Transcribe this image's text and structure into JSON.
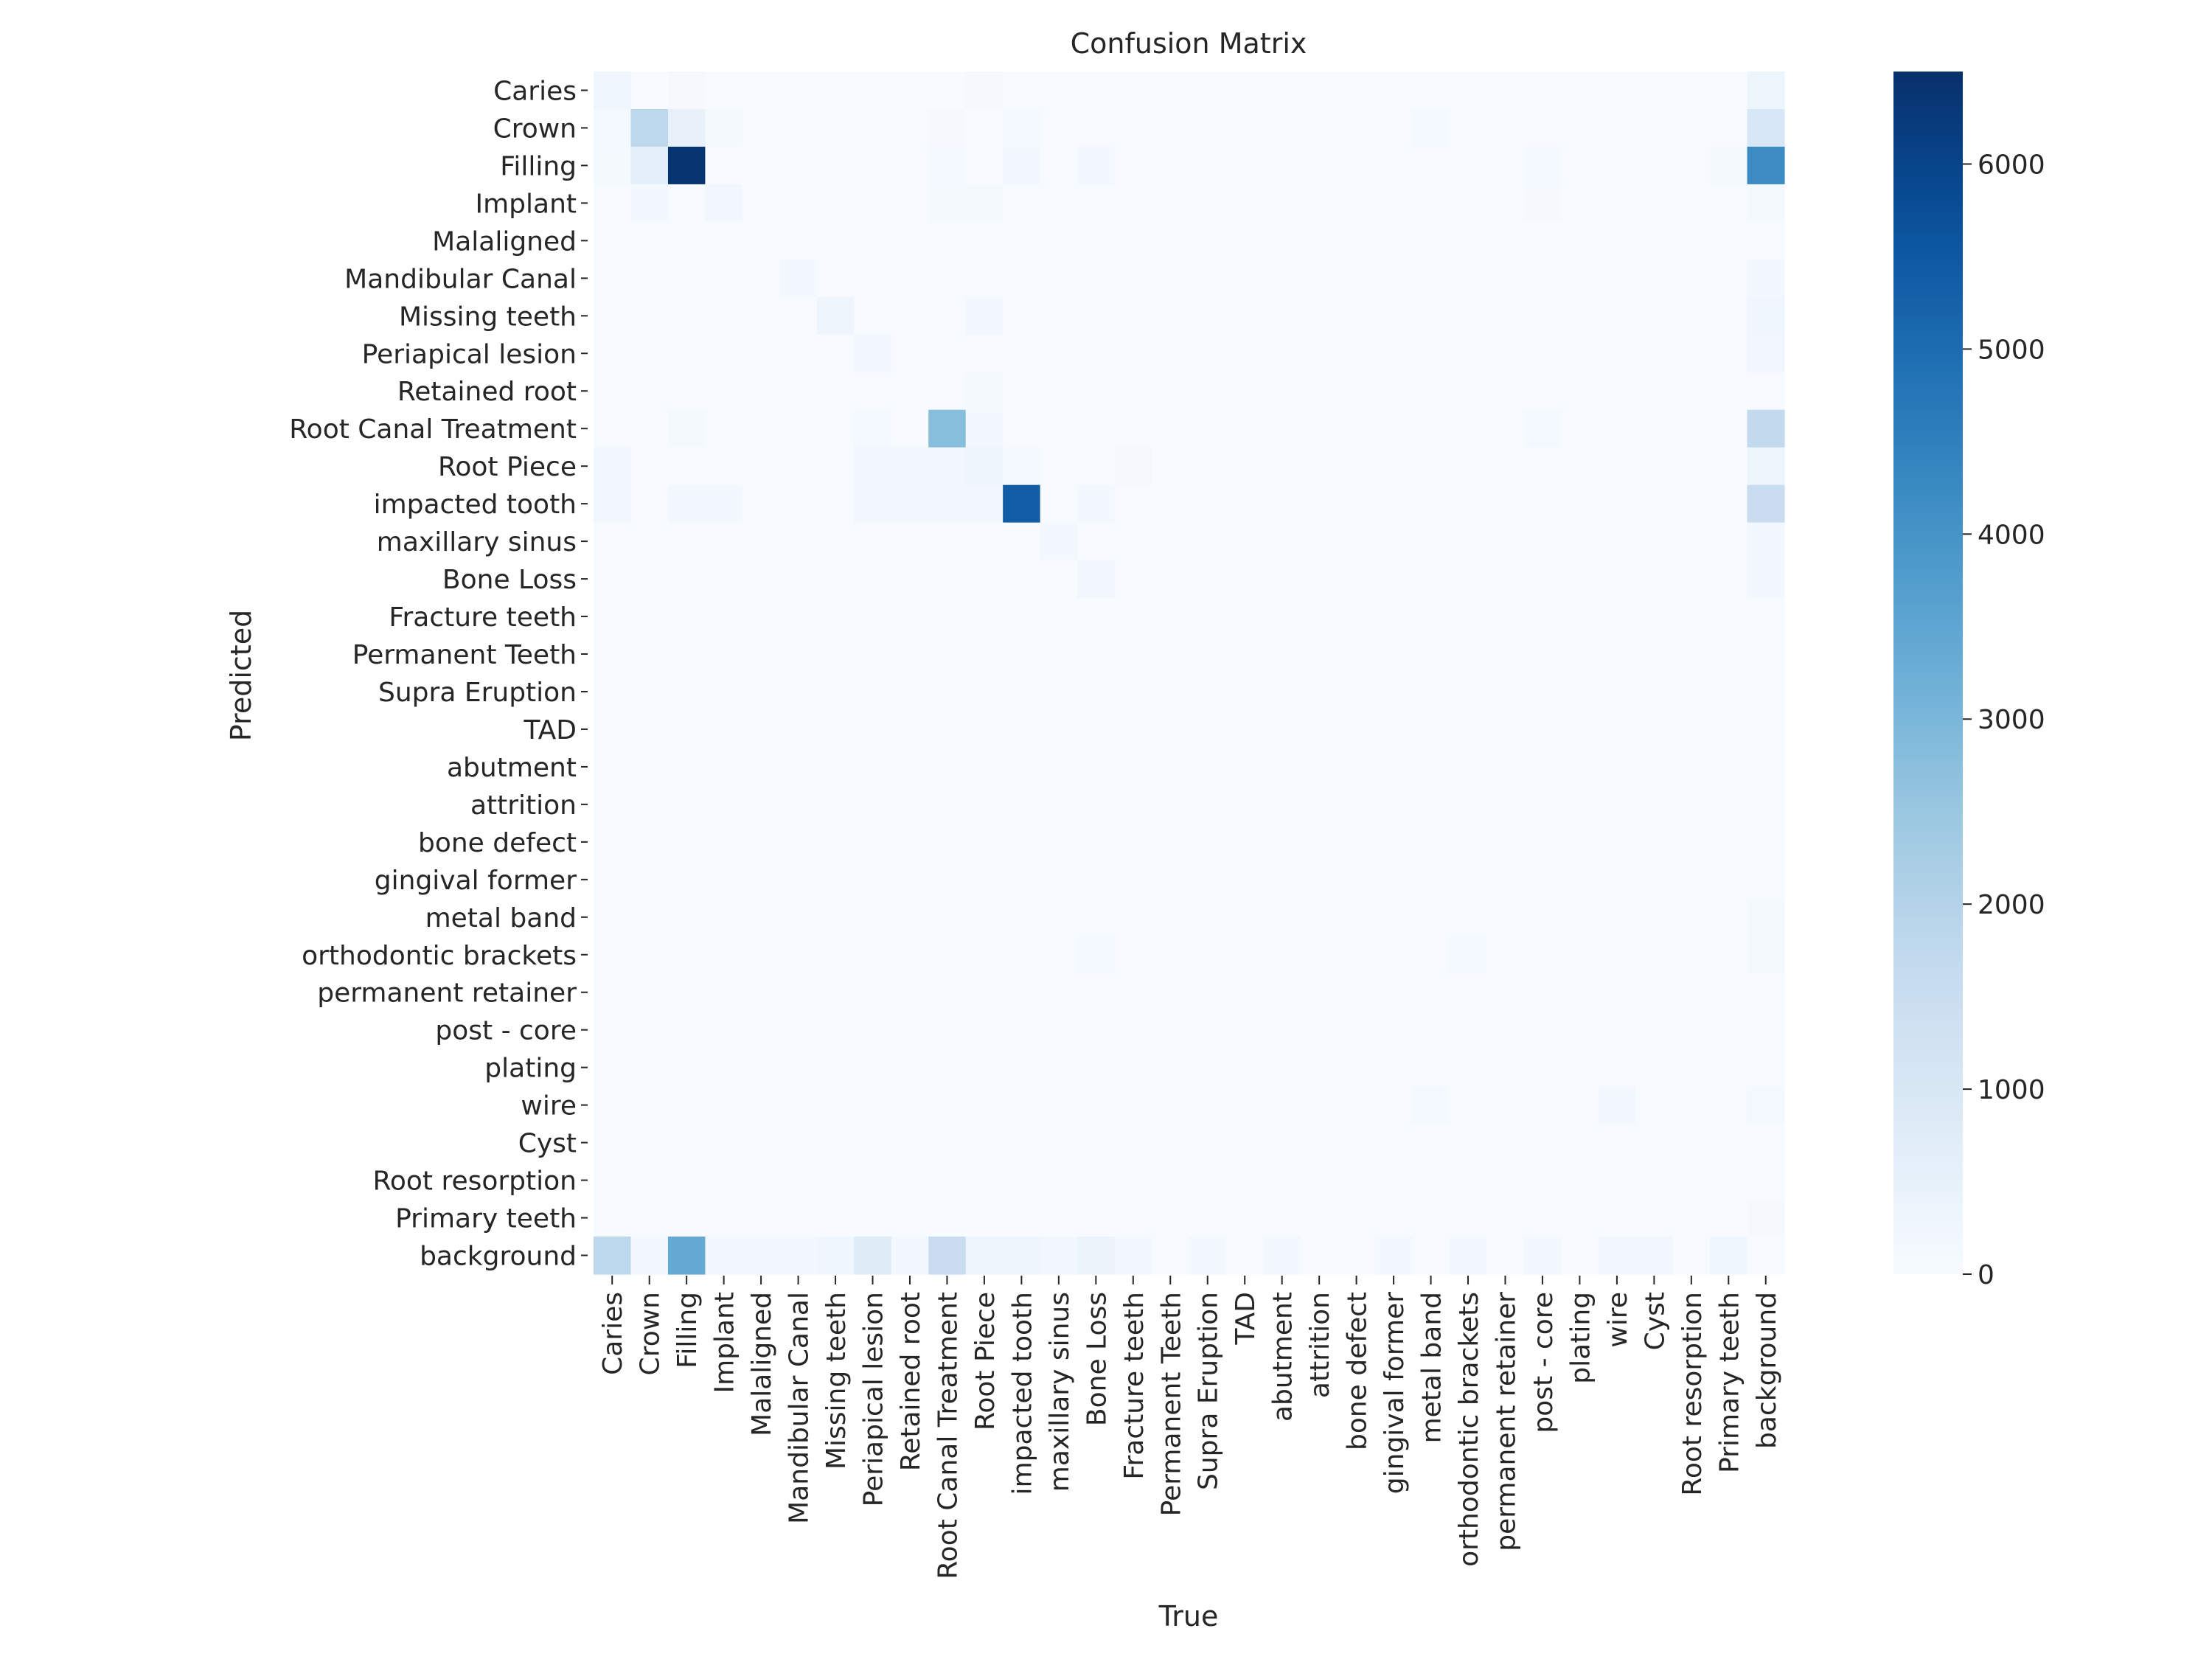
{
  "chart_data": {
    "type": "heatmap",
    "title": "Confusion Matrix",
    "xlabel": "True",
    "ylabel": "Predicted",
    "x_categories": [
      "Caries",
      "Crown",
      "Filling",
      "Implant",
      "Malaligned",
      "Mandibular Canal",
      "Missing teeth",
      "Periapical lesion",
      "Retained root",
      "Root Canal Treatment",
      "Root Piece",
      "impacted tooth",
      "maxillary sinus",
      "Bone Loss",
      "Fracture teeth",
      "Permanent Teeth",
      "Supra Eruption",
      "TAD",
      "abutment",
      "attrition",
      "bone defect",
      "gingival former",
      "metal band",
      "orthodontic brackets",
      "permanent retainer",
      "post - core",
      "plating",
      "wire",
      "Cyst",
      "Root resorption",
      "Primary teeth",
      "background"
    ],
    "y_categories": [
      "Caries",
      "Crown",
      "Filling",
      "Implant",
      "Malaligned",
      "Mandibular Canal",
      "Missing teeth",
      "Periapical lesion",
      "Retained root",
      "Root Canal Treatment",
      "Root Piece",
      "impacted tooth",
      "maxillary sinus",
      "Bone Loss",
      "Fracture teeth",
      "Permanent Teeth",
      "Supra Eruption",
      "TAD",
      "abutment",
      "attrition",
      "bone defect",
      "gingival former",
      "metal band",
      "orthodontic brackets",
      "permanent retainer",
      "post - core",
      "plating",
      "wire",
      "Cyst",
      "Root resorption",
      "Primary teeth",
      "background"
    ],
    "values": [
      [
        250,
        0,
        80,
        0,
        0,
        0,
        0,
        0,
        0,
        0,
        80,
        0,
        0,
        0,
        0,
        0,
        0,
        0,
        0,
        0,
        0,
        0,
        0,
        0,
        0,
        0,
        0,
        0,
        0,
        0,
        0,
        350
      ],
      [
        120,
        1800,
        500,
        100,
        0,
        0,
        0,
        0,
        0,
        80,
        0,
        120,
        0,
        0,
        0,
        0,
        0,
        0,
        0,
        0,
        0,
        0,
        120,
        0,
        0,
        0,
        0,
        0,
        0,
        0,
        0,
        1000
      ],
      [
        100,
        600,
        6400,
        0,
        0,
        0,
        0,
        0,
        0,
        120,
        0,
        150,
        0,
        150,
        0,
        0,
        0,
        0,
        0,
        0,
        0,
        0,
        0,
        0,
        0,
        120,
        0,
        0,
        0,
        0,
        100,
        4200
      ],
      [
        0,
        150,
        0,
        200,
        0,
        0,
        0,
        0,
        0,
        100,
        100,
        0,
        0,
        0,
        0,
        0,
        0,
        0,
        0,
        0,
        0,
        0,
        0,
        0,
        0,
        80,
        0,
        0,
        0,
        0,
        0,
        100
      ],
      [
        0,
        0,
        0,
        0,
        0,
        0,
        0,
        0,
        0,
        0,
        0,
        0,
        0,
        0,
        0,
        0,
        0,
        0,
        0,
        0,
        0,
        0,
        0,
        0,
        0,
        0,
        0,
        0,
        0,
        0,
        0,
        0
      ],
      [
        0,
        0,
        0,
        0,
        0,
        150,
        0,
        0,
        0,
        0,
        0,
        0,
        0,
        0,
        0,
        0,
        0,
        0,
        0,
        0,
        0,
        0,
        0,
        0,
        0,
        0,
        0,
        0,
        0,
        0,
        0,
        150
      ],
      [
        0,
        0,
        0,
        0,
        0,
        0,
        300,
        0,
        0,
        0,
        150,
        0,
        0,
        0,
        0,
        0,
        0,
        0,
        0,
        0,
        0,
        0,
        0,
        0,
        0,
        0,
        0,
        0,
        0,
        0,
        0,
        250
      ],
      [
        0,
        0,
        0,
        0,
        0,
        0,
        0,
        150,
        0,
        0,
        0,
        0,
        0,
        0,
        0,
        0,
        0,
        0,
        0,
        0,
        0,
        0,
        0,
        0,
        0,
        0,
        0,
        0,
        0,
        0,
        0,
        200
      ],
      [
        0,
        0,
        0,
        0,
        0,
        0,
        0,
        0,
        0,
        0,
        100,
        0,
        0,
        0,
        0,
        0,
        0,
        0,
        0,
        0,
        0,
        0,
        0,
        0,
        0,
        0,
        0,
        0,
        0,
        0,
        0,
        0
      ],
      [
        0,
        0,
        100,
        0,
        0,
        0,
        0,
        120,
        0,
        2800,
        150,
        0,
        0,
        0,
        0,
        0,
        0,
        0,
        0,
        0,
        0,
        0,
        0,
        0,
        0,
        120,
        0,
        0,
        0,
        0,
        0,
        1700
      ],
      [
        200,
        0,
        0,
        0,
        0,
        0,
        0,
        180,
        180,
        180,
        300,
        120,
        0,
        0,
        80,
        0,
        0,
        0,
        0,
        0,
        0,
        0,
        0,
        0,
        0,
        0,
        0,
        0,
        0,
        0,
        0,
        350
      ],
      [
        200,
        0,
        150,
        150,
        0,
        0,
        0,
        180,
        180,
        180,
        180,
        5400,
        0,
        150,
        0,
        0,
        0,
        0,
        0,
        0,
        0,
        0,
        0,
        0,
        0,
        0,
        0,
        0,
        0,
        0,
        0,
        1500
      ],
      [
        0,
        0,
        0,
        0,
        0,
        0,
        0,
        0,
        0,
        0,
        0,
        0,
        150,
        0,
        0,
        0,
        0,
        0,
        0,
        0,
        0,
        0,
        0,
        0,
        0,
        0,
        0,
        0,
        0,
        0,
        0,
        150
      ],
      [
        0,
        0,
        0,
        0,
        0,
        0,
        0,
        0,
        0,
        0,
        0,
        0,
        0,
        200,
        0,
        0,
        0,
        0,
        0,
        0,
        0,
        0,
        0,
        0,
        0,
        0,
        0,
        0,
        0,
        0,
        0,
        150
      ],
      [
        0,
        0,
        0,
        0,
        0,
        0,
        0,
        0,
        0,
        0,
        0,
        0,
        0,
        0,
        0,
        0,
        0,
        0,
        0,
        0,
        0,
        0,
        0,
        0,
        0,
        0,
        0,
        0,
        0,
        0,
        0,
        0
      ],
      [
        0,
        0,
        0,
        0,
        0,
        0,
        0,
        0,
        0,
        0,
        0,
        0,
        0,
        0,
        0,
        0,
        0,
        0,
        0,
        0,
        0,
        0,
        0,
        0,
        0,
        0,
        0,
        0,
        0,
        0,
        0,
        0
      ],
      [
        0,
        0,
        0,
        0,
        0,
        0,
        0,
        0,
        0,
        0,
        0,
        0,
        0,
        0,
        0,
        0,
        0,
        0,
        0,
        0,
        0,
        0,
        0,
        0,
        0,
        0,
        0,
        0,
        0,
        0,
        0,
        0
      ],
      [
        0,
        0,
        0,
        0,
        0,
        0,
        0,
        0,
        0,
        0,
        0,
        0,
        0,
        0,
        0,
        0,
        0,
        0,
        0,
        0,
        0,
        0,
        0,
        0,
        0,
        0,
        0,
        0,
        0,
        0,
        0,
        0
      ],
      [
        0,
        0,
        0,
        0,
        0,
        0,
        0,
        0,
        0,
        0,
        0,
        0,
        0,
        0,
        0,
        0,
        0,
        0,
        0,
        0,
        0,
        0,
        0,
        0,
        0,
        0,
        0,
        0,
        0,
        0,
        0,
        0
      ],
      [
        0,
        0,
        0,
        0,
        0,
        0,
        0,
        0,
        0,
        0,
        0,
        0,
        0,
        0,
        0,
        0,
        0,
        0,
        0,
        0,
        0,
        0,
        0,
        0,
        0,
        0,
        0,
        0,
        0,
        0,
        0,
        0
      ],
      [
        0,
        0,
        0,
        0,
        0,
        0,
        0,
        0,
        0,
        0,
        0,
        0,
        0,
        0,
        0,
        0,
        0,
        0,
        0,
        0,
        0,
        0,
        0,
        0,
        0,
        0,
        0,
        0,
        0,
        0,
        0,
        0
      ],
      [
        0,
        0,
        0,
        0,
        0,
        0,
        0,
        0,
        0,
        0,
        0,
        0,
        0,
        0,
        0,
        0,
        0,
        0,
        0,
        0,
        0,
        0,
        0,
        0,
        0,
        0,
        0,
        0,
        0,
        0,
        0,
        0
      ],
      [
        0,
        0,
        0,
        0,
        0,
        0,
        0,
        0,
        0,
        0,
        0,
        0,
        0,
        0,
        0,
        0,
        0,
        0,
        0,
        0,
        0,
        0,
        0,
        0,
        0,
        0,
        0,
        0,
        0,
        0,
        0,
        100
      ],
      [
        0,
        0,
        0,
        0,
        0,
        0,
        0,
        0,
        0,
        0,
        0,
        0,
        0,
        120,
        0,
        0,
        0,
        0,
        0,
        0,
        0,
        0,
        0,
        120,
        0,
        0,
        0,
        0,
        0,
        0,
        0,
        100
      ],
      [
        0,
        0,
        0,
        0,
        0,
        0,
        0,
        0,
        0,
        0,
        0,
        0,
        0,
        0,
        0,
        0,
        0,
        0,
        0,
        0,
        0,
        0,
        0,
        0,
        0,
        0,
        0,
        0,
        0,
        0,
        0,
        0
      ],
      [
        0,
        0,
        0,
        0,
        0,
        0,
        0,
        0,
        0,
        0,
        0,
        0,
        0,
        0,
        0,
        0,
        0,
        0,
        0,
        0,
        0,
        0,
        0,
        0,
        0,
        0,
        0,
        0,
        0,
        0,
        0,
        0
      ],
      [
        0,
        0,
        0,
        0,
        0,
        0,
        0,
        0,
        0,
        0,
        0,
        0,
        0,
        0,
        0,
        0,
        0,
        0,
        0,
        0,
        0,
        0,
        0,
        0,
        0,
        0,
        0,
        0,
        0,
        0,
        0,
        0
      ],
      [
        0,
        0,
        0,
        0,
        0,
        0,
        0,
        0,
        0,
        0,
        0,
        0,
        0,
        0,
        0,
        0,
        0,
        0,
        0,
        0,
        0,
        0,
        120,
        0,
        0,
        0,
        0,
        150,
        0,
        0,
        0,
        120
      ],
      [
        0,
        0,
        0,
        0,
        0,
        0,
        0,
        0,
        0,
        0,
        0,
        0,
        0,
        0,
        0,
        0,
        0,
        0,
        0,
        0,
        0,
        0,
        0,
        0,
        0,
        0,
        0,
        0,
        0,
        0,
        0,
        0
      ],
      [
        0,
        0,
        0,
        0,
        0,
        0,
        0,
        0,
        0,
        0,
        0,
        0,
        0,
        0,
        0,
        0,
        0,
        0,
        0,
        0,
        0,
        0,
        0,
        0,
        0,
        0,
        0,
        0,
        0,
        0,
        0,
        0
      ],
      [
        0,
        0,
        0,
        0,
        0,
        0,
        0,
        0,
        0,
        0,
        0,
        0,
        0,
        0,
        0,
        0,
        0,
        0,
        0,
        0,
        0,
        0,
        0,
        0,
        0,
        0,
        0,
        0,
        0,
        0,
        0,
        80
      ],
      [
        1800,
        150,
        3400,
        150,
        150,
        150,
        250,
        800,
        150,
        1500,
        300,
        300,
        180,
        400,
        150,
        0,
        150,
        0,
        150,
        0,
        0,
        150,
        0,
        150,
        0,
        150,
        0,
        200,
        200,
        0,
        250,
        0
      ]
    ],
    "colorbar": {
      "vmin": 0,
      "vmax": 6500,
      "ticks": [
        0,
        1000,
        2000,
        3000,
        4000,
        5000,
        6000
      ],
      "colormap": "Blues"
    },
    "colors": {
      "low": "#f7fbff",
      "high": "#08306b"
    },
    "grid": false,
    "legend": "colorbar-right"
  }
}
